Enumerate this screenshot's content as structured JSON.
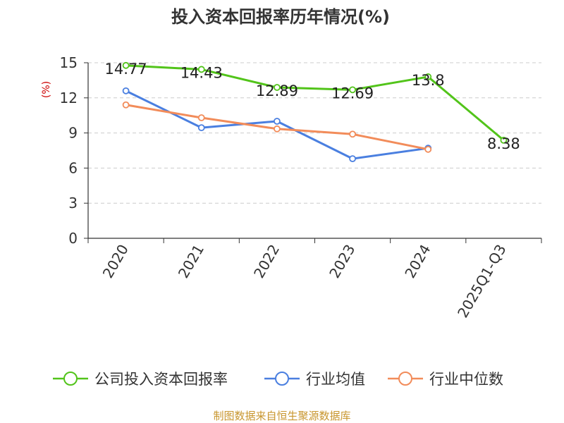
{
  "chart_data": {
    "type": "line",
    "title": "投入资本回报率历年情况(%)",
    "ylabel": "(%)",
    "xlabel": "",
    "categories": [
      "2020",
      "2021",
      "2022",
      "2023",
      "2024",
      "2025Q1-Q3"
    ],
    "ylim": [
      0,
      15
    ],
    "yticks": [
      0,
      3,
      6,
      9,
      12,
      15
    ],
    "grid": true,
    "legend_position": "bottom",
    "series": [
      {
        "name": "公司投入资本回报率",
        "color": "#52c41a",
        "values": [
          14.77,
          14.43,
          12.89,
          12.69,
          13.8,
          8.38
        ],
        "labels": [
          "14.77",
          "14.43",
          "12.89",
          "12.69",
          "13.8",
          "8.38"
        ]
      },
      {
        "name": "行业均值",
        "color": "#4a7fe0",
        "values": [
          12.6,
          9.45,
          10.0,
          6.8,
          7.7,
          null
        ]
      },
      {
        "name": "行业中位数",
        "color": "#f28c5a",
        "values": [
          11.4,
          10.3,
          9.35,
          8.9,
          7.6,
          null
        ]
      }
    ]
  },
  "footer": {
    "source": "制图数据来自恒生聚源数据库"
  },
  "colors": {
    "title": "#333333",
    "axis": "#333333",
    "ylabel": "#cc0000",
    "grid": "#cccccc",
    "footer": "#c8962e"
  }
}
